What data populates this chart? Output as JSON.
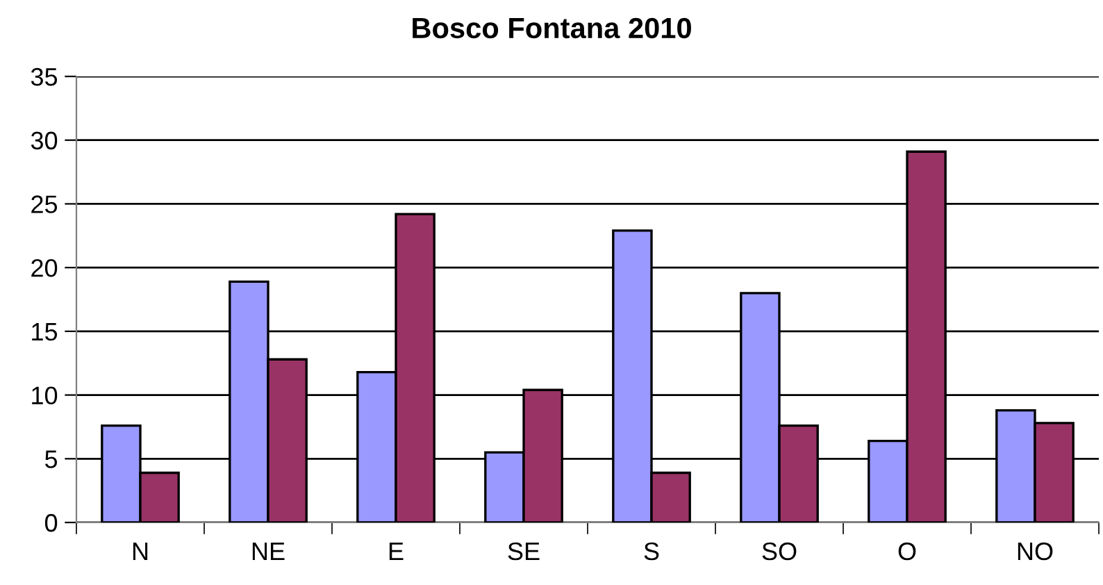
{
  "chart_data": {
    "type": "bar",
    "title": "Bosco Fontana 2010",
    "categories": [
      "N",
      "NE",
      "E",
      "SE",
      "S",
      "SO",
      "O",
      "NO"
    ],
    "series": [
      {
        "color": "#9999ff",
        "values": [
          7.6,
          18.9,
          11.8,
          5.5,
          22.9,
          18.0,
          6.4,
          8.8
        ]
      },
      {
        "color": "#993366",
        "values": [
          3.9,
          12.8,
          24.2,
          10.4,
          3.9,
          7.6,
          29.1,
          7.8
        ]
      }
    ],
    "ylim": [
      0,
      35
    ],
    "yticks": [
      0,
      5,
      10,
      15,
      20,
      25,
      30,
      35
    ],
    "grid": "y",
    "legend": false
  }
}
